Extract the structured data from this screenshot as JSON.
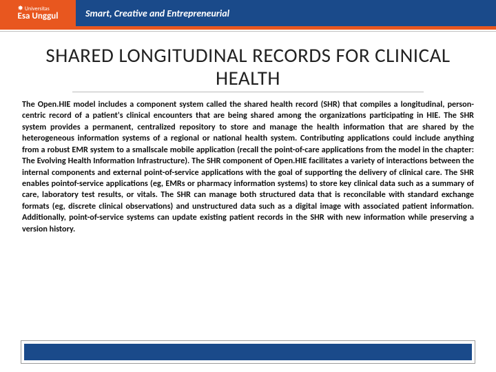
{
  "header": {
    "logo_line1": "Universitas",
    "logo_line2": "Esa Unggul",
    "tagline": "Smart, Creative and Entrepreneurial",
    "bar_color": "#1a4a8a",
    "logo_bg": "#e8571f",
    "strip_color": "#e8571f"
  },
  "title": "SHARED LONGITUDINAL RECORDS FOR CLINICAL HEALTH",
  "body": "The Open.HIE model includes a component system called the shared health record (SHR) that compiles a longitudinal, person-centric record of a patient's clinical encounters that are being shared among the organizations participating in HIE. The SHR system provides a permanent, centralized repository to store and manage the health information that are shared by the heterogeneous information systems of a regional or national health system. Contributing applications could include anything from a robust EMR system to a smallscale mobile application (recall the point-of-care applications from the model in the chapter: The Evolving Health Information Infrastructure). The SHR component of Open.HIE facilitates a variety of interactions between the internal components and external point-of-service applications with the goal of supporting the delivery of clinical care. The SHR enables pointof-service applications (eg, EMRs or pharmacy information systems) to store key clinical data such as a summary of care, laboratory test results, or vitals. The SHR can manage both structured data that is reconcilable with standard exchange formats (eg, discrete clinical observations) and unstructured data such as a digital image with associated patient information. Additionally, point-of-service systems can update existing patient records in the SHR with new information while preserving a version history.",
  "footer": {
    "outer_border": "#999999",
    "inner_color": "#1a4a8a"
  },
  "typography": {
    "title_fontsize": 29,
    "body_fontsize": 12.2,
    "body_weight": 600
  }
}
